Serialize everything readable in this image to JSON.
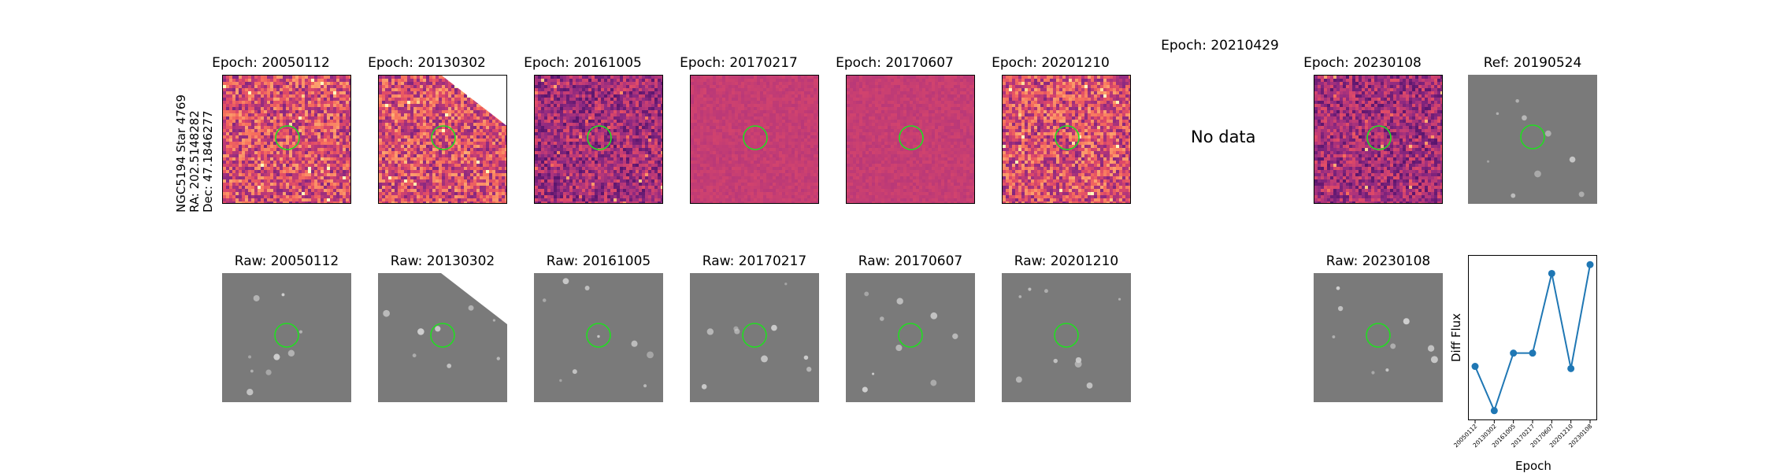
{
  "side_label": {
    "line1": "NGC5194 Star 4769",
    "line2": "RA: 202.5148282",
    "line3": "Dec: 47.1846277"
  },
  "top_row": [
    {
      "title": "Epoch: 20050112",
      "kind": "diff"
    },
    {
      "title": "Epoch: 20130302",
      "kind": "diff"
    },
    {
      "title": "Epoch: 20161005",
      "kind": "diff"
    },
    {
      "title": "Epoch: 20170217",
      "kind": "diff"
    },
    {
      "title": "Epoch: 20170607",
      "kind": "diff"
    },
    {
      "title": "Epoch: 20201210",
      "kind": "diff"
    },
    {
      "title": "Epoch: 20210429",
      "kind": "nodata"
    },
    {
      "title": "Epoch: 20230108",
      "kind": "diff"
    },
    {
      "title": "Ref: 20190524",
      "kind": "raw"
    }
  ],
  "nodata_text": "No data",
  "bottom_row": [
    {
      "title": "Raw: 20050112"
    },
    {
      "title": "Raw: 20130302"
    },
    {
      "title": "Raw: 20161005"
    },
    {
      "title": "Raw: 20170217"
    },
    {
      "title": "Raw: 20170607"
    },
    {
      "title": "Raw: 20201210"
    },
    {
      "title": "Raw: 20230108"
    }
  ],
  "colors": {
    "circle": "#22dd22",
    "line": "#1f77b4",
    "raw_bg": "#7a7a7a"
  },
  "chart_data": {
    "type": "line",
    "x": [
      "20050112",
      "20130302",
      "20161005",
      "20170217",
      "20170607",
      "20201210",
      "20230108"
    ],
    "series": [
      {
        "values": [
          0.2,
          -0.8,
          0.5,
          0.5,
          2.3,
          0.15,
          2.5
        ]
      }
    ],
    "xlabel": "Epoch",
    "ylabel": "Diff Flux",
    "ylim": [
      -1.0,
      2.7
    ],
    "grid": false,
    "legend": "none"
  }
}
